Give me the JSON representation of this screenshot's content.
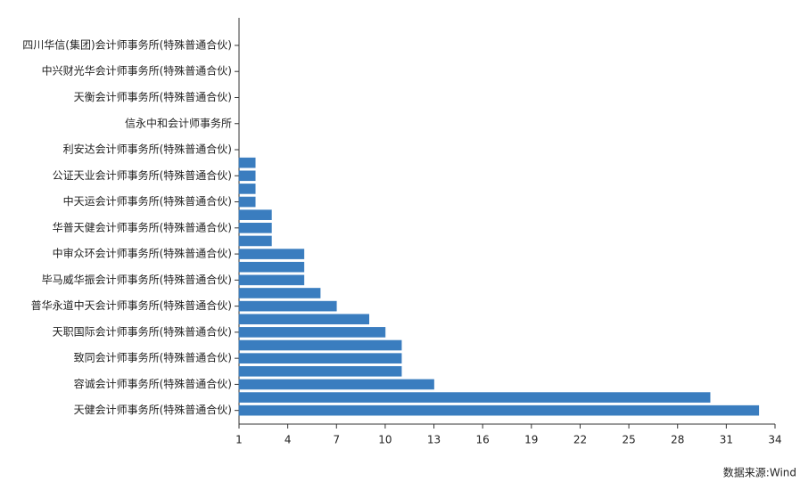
{
  "chart_data": {
    "type": "bar",
    "orientation": "horizontal",
    "categories": [
      null,
      "四川华信(集团)会计师事务所(特殊普通合伙)",
      null,
      "中兴财光华会计师事务所(特殊普通合伙)",
      null,
      "天衡会计师事务所(特殊普通合伙)",
      null,
      "信永中和会计师事务所",
      null,
      "利安达会计师事务所(特殊普通合伙)",
      null,
      "公证天业会计师事务所(特殊普通合伙)",
      null,
      "中天运会计师事务所(特殊普通合伙)",
      null,
      "华普天健会计师事务所(特殊普通合伙)",
      null,
      "中审众环会计师事务所(特殊普通合伙)",
      null,
      "毕马威华振会计师事务所(特殊普通合伙)",
      null,
      "普华永道中天会计师事务所(特殊普通合伙)",
      null,
      "天职国际会计师事务所(特殊普通合伙)",
      null,
      "致同会计师事务所(特殊普通合伙)",
      null,
      "容诚会计师事务所(特殊普通合伙)",
      null,
      "天健会计师事务所(特殊普通合伙)"
    ],
    "values": [
      1,
      1,
      1,
      1,
      1,
      1,
      1,
      1,
      1,
      1,
      2,
      2,
      2,
      2,
      3,
      3,
      3,
      5,
      5,
      5,
      6,
      7,
      9,
      10,
      11,
      11,
      11,
      13,
      30,
      33
    ],
    "color": "#3a7dbf",
    "xlim": [
      1,
      34
    ],
    "xticks": [
      1,
      4,
      7,
      10,
      13,
      16,
      19,
      22,
      25,
      28,
      31,
      34
    ],
    "source": "数据来源:Wind"
  }
}
